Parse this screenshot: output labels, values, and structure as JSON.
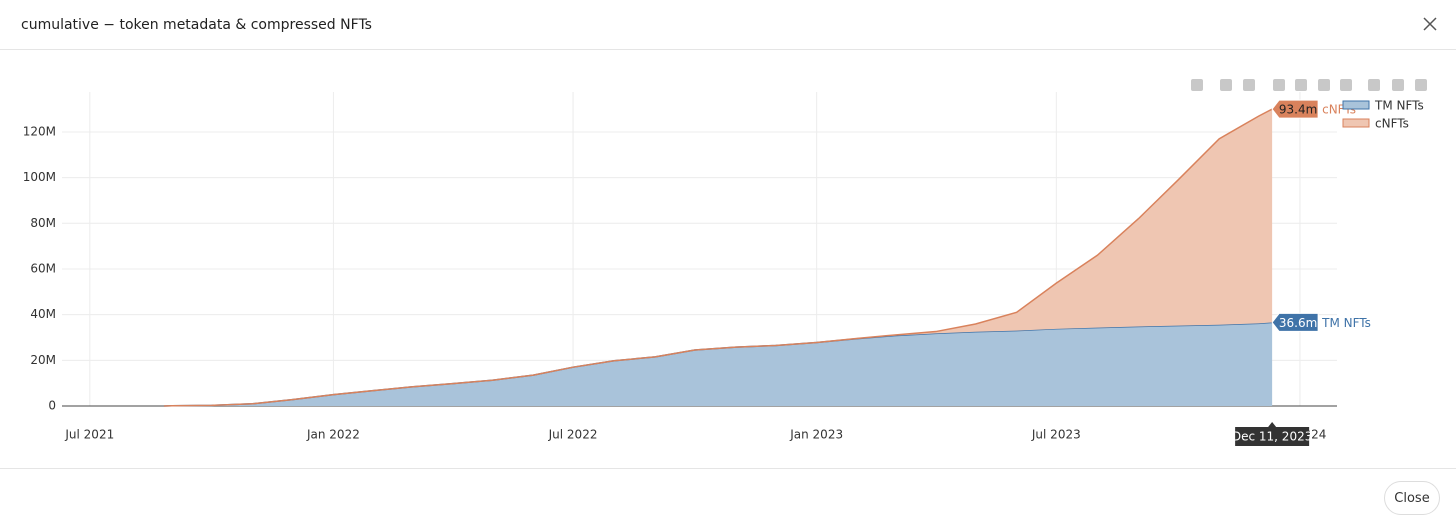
{
  "modal": {
    "title": "cumulative − token metadata & compressed NFTs",
    "close_button": "Close"
  },
  "chart_data": {
    "type": "stacked_area",
    "x": [
      "2021-08-26",
      "2021-09-01",
      "2021-10-01",
      "2021-11-01",
      "2021-12-01",
      "2022-01-01",
      "2022-02-01",
      "2022-03-01",
      "2022-04-01",
      "2022-05-01",
      "2022-06-01",
      "2022-07-01",
      "2022-08-01",
      "2022-09-01",
      "2022-10-01",
      "2022-11-01",
      "2022-12-01",
      "2023-01-01",
      "2023-02-01",
      "2023-03-01",
      "2023-04-01",
      "2023-05-01",
      "2023-06-01",
      "2023-07-01",
      "2023-08-01",
      "2023-09-01",
      "2023-10-01",
      "2023-11-01",
      "2023-12-01",
      "2023-12-11"
    ],
    "series": [
      {
        "name": "TM NFTs",
        "color": "#3f73a8",
        "fill": "#a9c3da",
        "values": [
          0,
          100000,
          300000,
          1000000,
          2800000,
          5000000,
          6800000,
          8400000,
          9800000,
          11300000,
          13500000,
          17000000,
          19800000,
          21500000,
          24500000,
          25800000,
          26500000,
          27800000,
          29500000,
          30800000,
          31800000,
          32500000,
          33000000,
          33800000,
          34300000,
          34800000,
          35200000,
          35600000,
          36200000,
          36600000
        ],
        "value_labels": [
          null,
          null,
          null,
          null,
          null,
          null,
          null,
          null,
          null,
          null,
          null,
          null,
          null,
          null,
          null,
          null,
          null,
          null,
          null,
          null,
          null,
          null,
          null,
          null,
          null,
          null,
          null,
          null,
          null,
          "36.6m"
        ]
      },
      {
        "name": "cNFTs",
        "color": "#d9825c",
        "fill": "#efc6b2",
        "values": [
          0,
          0,
          0,
          0,
          0,
          0,
          0,
          0,
          0,
          0,
          0,
          0,
          0,
          0,
          0,
          0,
          0,
          0,
          100000,
          300000,
          800000,
          3400000,
          8000000,
          20000000,
          31700000,
          47200000,
          63800000,
          81400000,
          90800000,
          93400000
        ],
        "value_labels": [
          null,
          null,
          null,
          null,
          null,
          null,
          null,
          null,
          null,
          null,
          null,
          null,
          null,
          null,
          null,
          null,
          null,
          null,
          null,
          null,
          null,
          null,
          null,
          null,
          null,
          null,
          null,
          null,
          null,
          "93.4m"
        ]
      }
    ],
    "hover_x_label": "Dec 11, 2023",
    "xlim": [
      "2021-06-10",
      "2024-01-29"
    ],
    "xticks": [
      {
        "value": "2021-07-01",
        "label": "Jul 2021"
      },
      {
        "value": "2022-01-01",
        "label": "Jan 2022"
      },
      {
        "value": "2022-07-01",
        "label": "Jul 2022"
      },
      {
        "value": "2023-01-01",
        "label": "Jan 2023"
      },
      {
        "value": "2023-07-01",
        "label": "Jul 2023"
      },
      {
        "value": "2024-01-01",
        "label": "Jan 2024"
      }
    ],
    "ylim": [
      0,
      137500000
    ],
    "yticks": [
      0,
      {
        "value": 20000000,
        "label": "20M"
      },
      {
        "value": 40000000,
        "label": "40M"
      },
      {
        "value": 60000000,
        "label": "60M"
      },
      {
        "value": 80000000,
        "label": "80M"
      },
      {
        "value": 100000000,
        "label": "100M"
      },
      {
        "value": 120000000,
        "label": "120M"
      }
    ],
    "grid": true,
    "legend": "top-right"
  }
}
